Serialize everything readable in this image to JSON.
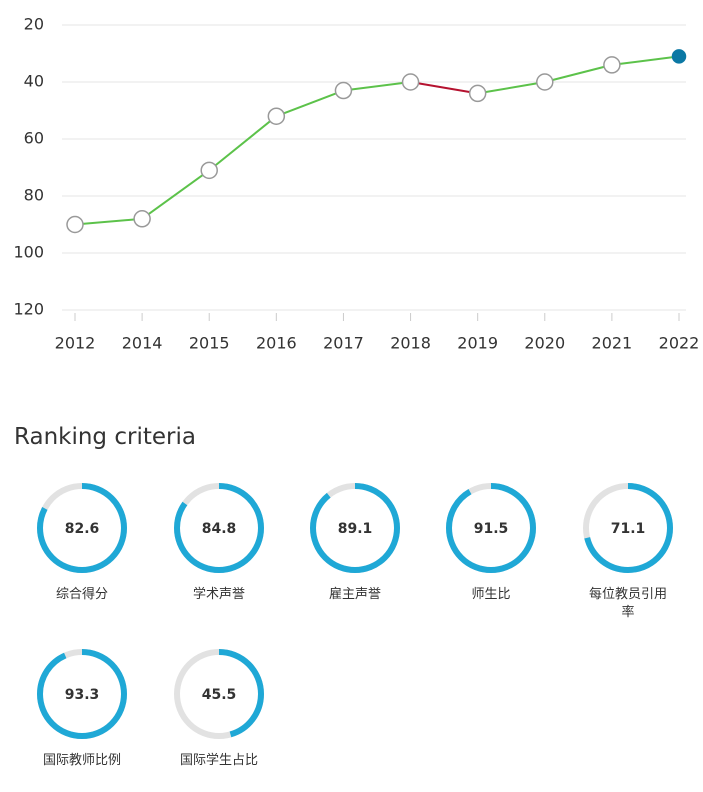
{
  "chart_data": {
    "type": "line",
    "categories": [
      "2012",
      "2014",
      "2015",
      "2016",
      "2017",
      "2018",
      "2019",
      "2020",
      "2021",
      "2022"
    ],
    "values": [
      90,
      88,
      71,
      52,
      43,
      40,
      44,
      40,
      34,
      31
    ],
    "ylim": [
      20,
      120
    ],
    "yticks": [
      20,
      40,
      60,
      80,
      100,
      120
    ],
    "y_inverted": true,
    "grid": true,
    "color": "#5cc24a",
    "worse_color": "#b5122f",
    "last_point_color": "#0b78a4"
  },
  "criteria": {
    "title": "Ranking criteria",
    "max": 100,
    "color": "#1fa8d6",
    "track_color": "#e2e2e2",
    "items": [
      {
        "label": "综合得分",
        "value": 82.6
      },
      {
        "label": "学术声誉",
        "value": 84.8
      },
      {
        "label": "雇主声誉",
        "value": 89.1
      },
      {
        "label": "师生比",
        "value": 91.5
      },
      {
        "label": "每位教员引用率",
        "value": 71.1
      },
      {
        "label": "国际教师比例",
        "value": 93.3
      },
      {
        "label": "国际学生占比",
        "value": 45.5
      }
    ]
  }
}
